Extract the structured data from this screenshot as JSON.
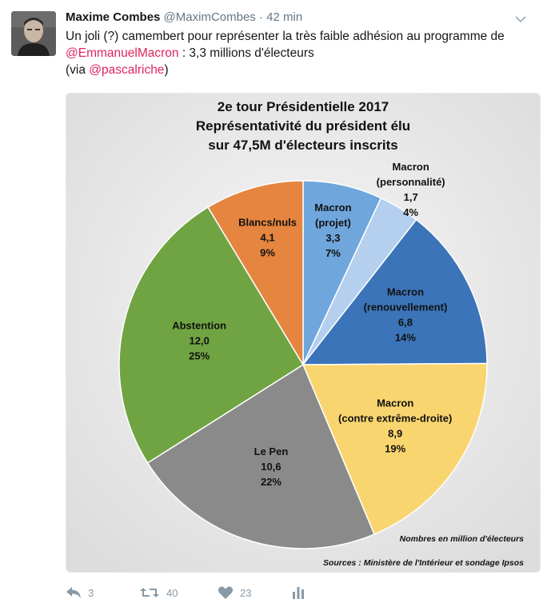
{
  "tweet": {
    "author_name": "Maxime Combes",
    "author_handle": "@MaximCombes",
    "separator": "·",
    "time": "42 min",
    "text_part1": "Un joli (?) camembert pour représenter la très faible adhésion au programme de",
    "mention1": "@EmmanuelMacron",
    "text_part2": " : 3,3 millions d'électeurs",
    "via_open": "(via ",
    "mention2": "@pascalriche",
    "via_close": ")"
  },
  "actions": {
    "reply_count": "3",
    "retweet_count": "40",
    "like_count": "23"
  },
  "icons": {
    "reply": "reply-icon",
    "retweet": "retweet-icon",
    "like": "heart-icon",
    "analytics": "analytics-icon",
    "menu": "chevron-down-icon"
  },
  "colors": {
    "mention": "#e0245e",
    "action_gray": "#8899a6"
  },
  "chart_data": {
    "type": "pie",
    "title_lines": [
      "2e tour Présidentielle 2017",
      "Représentativité du président élu",
      "sur 47,5M d'électeurs inscrits"
    ],
    "footnote": "Nombres en million d'électeurs",
    "source": "Sources : Ministère de l'Intérieur et sondage Ipsos",
    "slices": [
      {
        "label": [
          "Macron",
          "(projet)"
        ],
        "value": 3.3,
        "value_label": "3,3",
        "percent_label": "7%",
        "color": "#6fa6dc"
      },
      {
        "label": [
          "Macron",
          "(personnalité)"
        ],
        "value": 1.7,
        "value_label": "1,7",
        "percent_label": "4%",
        "color": "#b5cfee"
      },
      {
        "label": [
          "Macron",
          "(renouvellement)"
        ],
        "value": 6.8,
        "value_label": "6,8",
        "percent_label": "14%",
        "color": "#3b74b8"
      },
      {
        "label": [
          "Macron",
          "(contre extrême-droite)"
        ],
        "value": 8.9,
        "value_label": "8,9",
        "percent_label": "19%",
        "color": "#f9d56f"
      },
      {
        "label": [
          "Le Pen"
        ],
        "value": 10.6,
        "value_label": "10,6",
        "percent_label": "22%",
        "color": "#8a8a8a"
      },
      {
        "label": [
          "Abstention"
        ],
        "value": 12.0,
        "value_label": "12,0",
        "percent_label": "25%",
        "color": "#70a443"
      },
      {
        "label": [
          "Blancs/nuls"
        ],
        "value": 4.1,
        "value_label": "4,1",
        "percent_label": "9%",
        "color": "#e5853f"
      }
    ]
  }
}
